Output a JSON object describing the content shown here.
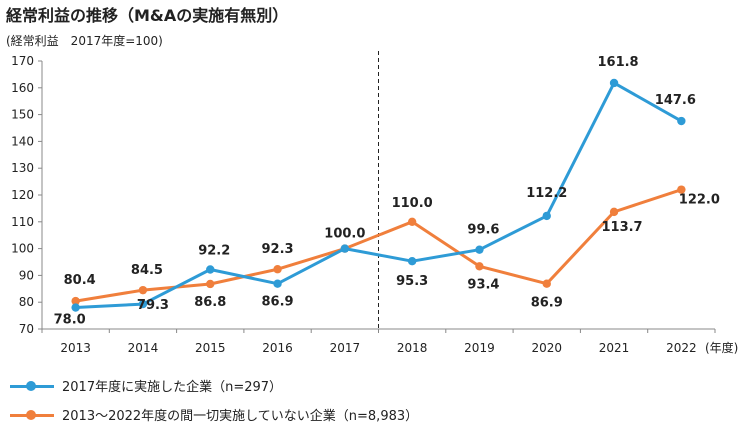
{
  "title": "経常利益の推移（M&Aの実施有無別）",
  "subtitle": "(経常利益　2017年度=100)",
  "chart_data": {
    "type": "line",
    "x": [
      "2013",
      "2014",
      "2015",
      "2016",
      "2017",
      "2018",
      "2019",
      "2020",
      "2021",
      "2022"
    ],
    "x_unit": "(年度)",
    "ylim": [
      70,
      170
    ],
    "yticks": [
      70,
      80,
      90,
      100,
      110,
      120,
      130,
      140,
      150,
      160,
      170
    ],
    "reference_line_x": "2017",
    "grid": false,
    "legend_placement": "bottom-left",
    "series": [
      {
        "name": "2017年度に実施した企業（n=297）",
        "color": "#2E9BD6",
        "values": [
          78.0,
          79.3,
          92.2,
          86.9,
          100.0,
          95.3,
          99.6,
          112.2,
          161.8,
          147.6
        ],
        "labels": [
          "78.0",
          "79.3",
          "92.2",
          "86.9",
          "100.0",
          "95.3",
          "99.6",
          "112.2",
          "161.8",
          "147.6"
        ]
      },
      {
        "name": "2013～2022年度の間一切実施していない企業（n=8,983）",
        "color": "#F07F3C",
        "values": [
          80.4,
          84.5,
          86.8,
          92.3,
          100.0,
          110.0,
          93.4,
          86.9,
          113.7,
          122.0
        ],
        "labels": [
          "80.4",
          "84.5",
          "86.8",
          "92.3",
          "",
          "110.0",
          "93.4",
          "86.9",
          "113.7",
          "122.0"
        ]
      }
    ]
  }
}
